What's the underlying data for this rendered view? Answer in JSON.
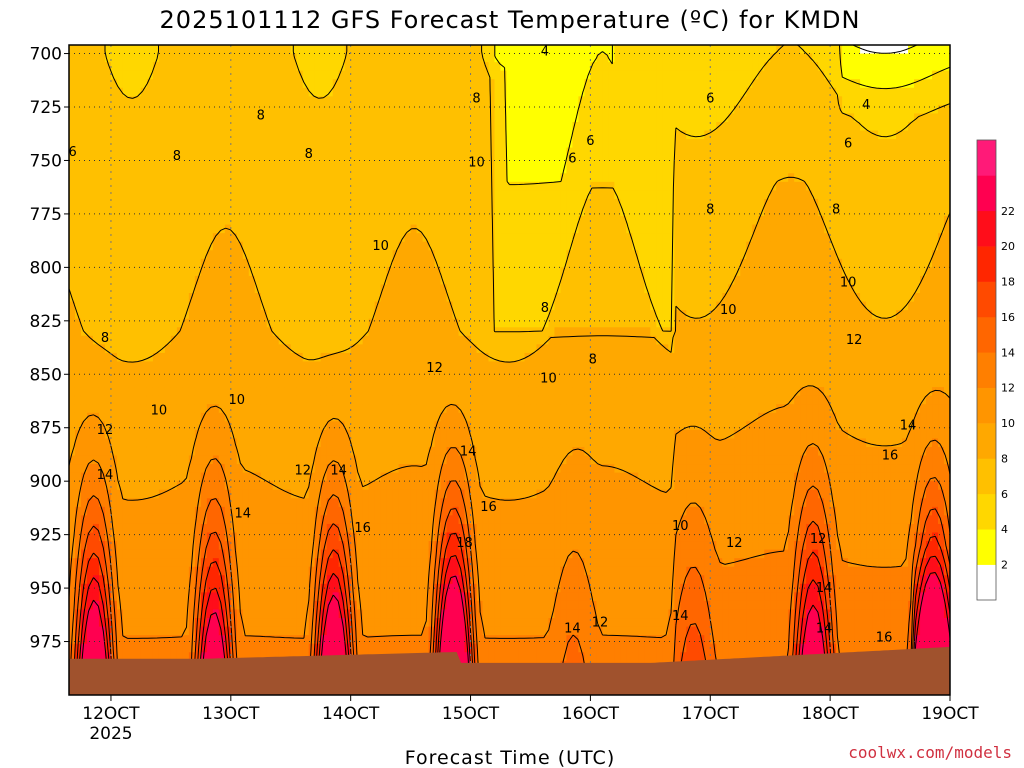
{
  "chart_data": {
    "type": "heatmap",
    "title": "2025101112 GFS Forecast Temperature (ºC) for KMDN",
    "xlabel": "Forecast Time (UTC)",
    "credit": "coolwx.com/models",
    "x_ticks": [
      "12OCT",
      "13OCT",
      "14OCT",
      "15OCT",
      "16OCT",
      "17OCT",
      "18OCT",
      "19OCT"
    ],
    "x_year": "2025",
    "x_range_days": [
      11.65,
      19.0
    ],
    "y_ticks": [
      700,
      725,
      750,
      775,
      800,
      825,
      850,
      875,
      900,
      925,
      950,
      975
    ],
    "y_range_hpa": [
      696,
      1000
    ],
    "y_axis": "pressure (hPa), increasing downward",
    "legend": {
      "placement": "right",
      "levels": [
        0,
        2,
        4,
        6,
        8,
        10,
        12,
        14,
        16,
        18,
        20,
        22,
        24
      ],
      "tick_labels": [
        2,
        4,
        6,
        8,
        10,
        12,
        14,
        16,
        18,
        20,
        22
      ],
      "colors": [
        "#ffffff",
        "#ffff00",
        "#ffd700",
        "#ffc000",
        "#ffa800",
        "#ff9500",
        "#ff7f00",
        "#ff6600",
        "#ff4a00",
        "#ff2600",
        "#ff0d1a",
        "#ff0050",
        "#ff1a78"
      ]
    },
    "terrain_color": "#a0522d",
    "contour_labels": [
      {
        "value": "6",
        "day": 11.68,
        "p": 746
      },
      {
        "value": "4",
        "day": 15.62,
        "p": 699
      },
      {
        "value": "8",
        "day": 13.25,
        "p": 729
      },
      {
        "value": "8",
        "day": 12.55,
        "p": 748
      },
      {
        "value": "8",
        "day": 13.65,
        "p": 747
      },
      {
        "value": "8",
        "day": 15.05,
        "p": 721
      },
      {
        "value": "6",
        "day": 16.0,
        "p": 741
      },
      {
        "value": "6",
        "day": 15.85,
        "p": 749
      },
      {
        "value": "6",
        "day": 17.0,
        "p": 721
      },
      {
        "value": "4",
        "day": 18.3,
        "p": 724
      },
      {
        "value": "6",
        "day": 18.15,
        "p": 742
      },
      {
        "value": "10",
        "day": 15.05,
        "p": 751
      },
      {
        "value": "10",
        "day": 14.25,
        "p": 790
      },
      {
        "value": "8",
        "day": 17.0,
        "p": 773
      },
      {
        "value": "8",
        "day": 18.05,
        "p": 773
      },
      {
        "value": "10",
        "day": 18.15,
        "p": 807
      },
      {
        "value": "10",
        "day": 17.15,
        "p": 820
      },
      {
        "value": "8",
        "day": 15.62,
        "p": 819
      },
      {
        "value": "8",
        "day": 16.02,
        "p": 843
      },
      {
        "value": "8",
        "day": 11.95,
        "p": 833
      },
      {
        "value": "12",
        "day": 14.7,
        "p": 847
      },
      {
        "value": "12",
        "day": 18.2,
        "p": 834
      },
      {
        "value": "10",
        "day": 15.65,
        "p": 852
      },
      {
        "value": "10",
        "day": 12.4,
        "p": 867
      },
      {
        "value": "10",
        "day": 13.05,
        "p": 862
      },
      {
        "value": "12",
        "day": 11.95,
        "p": 876
      },
      {
        "value": "14",
        "day": 11.95,
        "p": 897
      },
      {
        "value": "12",
        "day": 13.6,
        "p": 895
      },
      {
        "value": "14",
        "day": 13.9,
        "p": 895
      },
      {
        "value": "14",
        "day": 14.98,
        "p": 886
      },
      {
        "value": "14",
        "day": 13.1,
        "p": 915
      },
      {
        "value": "16",
        "day": 14.1,
        "p": 922
      },
      {
        "value": "16",
        "day": 15.15,
        "p": 912
      },
      {
        "value": "18",
        "day": 14.95,
        "p": 929
      },
      {
        "value": "14",
        "day": 18.65,
        "p": 874
      },
      {
        "value": "16",
        "day": 18.5,
        "p": 888
      },
      {
        "value": "10",
        "day": 16.75,
        "p": 921
      },
      {
        "value": "12",
        "day": 17.2,
        "p": 929
      },
      {
        "value": "12",
        "day": 17.9,
        "p": 927
      },
      {
        "value": "14",
        "day": 17.95,
        "p": 950
      },
      {
        "value": "14",
        "day": 16.75,
        "p": 963
      },
      {
        "value": "14",
        "day": 17.95,
        "p": 969
      },
      {
        "value": "16",
        "day": 18.45,
        "p": 973
      },
      {
        "value": "14",
        "day": 15.85,
        "p": 969
      },
      {
        "value": "12",
        "day": 16.08,
        "p": 966
      }
    ]
  }
}
